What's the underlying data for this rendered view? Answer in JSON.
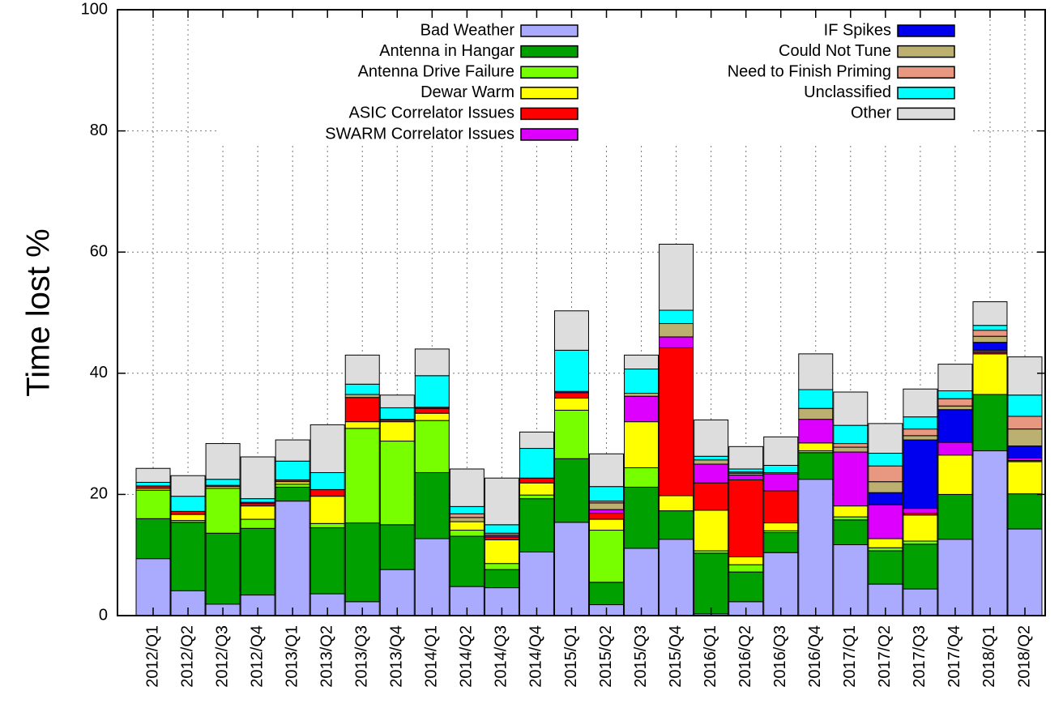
{
  "chart_data": {
    "type": "stacked_bar",
    "y_label": "Time lost %",
    "categories": [
      "2012/Q1",
      "2012/Q2",
      "2012/Q3",
      "2012/Q4",
      "2013/Q1",
      "2013/Q2",
      "2013/Q3",
      "2013/Q4",
      "2014/Q1",
      "2014/Q2",
      "2014/Q3",
      "2014/Q4",
      "2015/Q1",
      "2015/Q2",
      "2015/Q3",
      "2015/Q4",
      "2016/Q1",
      "2016/Q2",
      "2016/Q3",
      "2016/Q4",
      "2017/Q1",
      "2017/Q2",
      "2017/Q3",
      "2017/Q4",
      "2018/Q1",
      "2018/Q2"
    ],
    "ylim": [
      0,
      100
    ],
    "yticks": [
      0,
      20,
      40,
      60,
      80,
      100
    ],
    "grid": true,
    "legend": "top",
    "series": [
      {
        "name": "Bad Weather",
        "color": "#aaaaff",
        "values": [
          9.4,
          4.1,
          1.9,
          3.4,
          18.9,
          3.6,
          2.3,
          7.6,
          12.7,
          4.8,
          4.6,
          10.5,
          15.4,
          1.8,
          11.1,
          12.6,
          0.3,
          2.3,
          10.4,
          22.5,
          11.7,
          5.2,
          4.4,
          12.6,
          27.2,
          14.3
        ]
      },
      {
        "name": "Antenna in Hangar",
        "color": "#00a000",
        "values": [
          6.6,
          11.3,
          11.7,
          11.0,
          2.3,
          10.9,
          13.0,
          7.4,
          10.9,
          8.3,
          3.0,
          8.8,
          10.5,
          3.7,
          10.1,
          4.7,
          10.0,
          4.9,
          3.3,
          4.4,
          4.1,
          5.5,
          7.4,
          7.4,
          9.3,
          5.8
        ]
      },
      {
        "name": "Antenna Drive Failure",
        "color": "#77ff00",
        "values": [
          4.7,
          0.3,
          7.4,
          1.5,
          0.5,
          0.7,
          15.6,
          13.8,
          8.6,
          1.0,
          1.0,
          0.6,
          8.0,
          8.6,
          3.2,
          0,
          0.4,
          1.2,
          0.3,
          0.3,
          0.5,
          0.5,
          0.5,
          0,
          0,
          0
        ]
      },
      {
        "name": "Dewar Warm",
        "color": "#ffff00",
        "values": [
          0.3,
          1.0,
          0.3,
          2.2,
          0.4,
          4.5,
          1.1,
          3.2,
          1.2,
          1.4,
          3.9,
          2.0,
          2.0,
          1.8,
          7.6,
          2.5,
          6.7,
          1.3,
          1.3,
          1.3,
          1.8,
          1.5,
          4.3,
          6.5,
          6.7,
          5.3
        ]
      },
      {
        "name": "ASIC Correlator Issues",
        "color": "#ff0000",
        "values": [
          0.4,
          0.5,
          0.2,
          0.4,
          0.3,
          1.1,
          4.0,
          0.3,
          0.8,
          0,
          0.5,
          0.8,
          0.9,
          1.0,
          0,
          24.4,
          4.5,
          12.7,
          5.3,
          0,
          0,
          0,
          0.3,
          0,
          0.3,
          0.2
        ]
      },
      {
        "name": "SWARM Correlator Issues",
        "color": "#dd00ff",
        "values": [
          0,
          0,
          0,
          0.2,
          0,
          0,
          0,
          0.1,
          0.2,
          0,
          0.3,
          0,
          0.2,
          0.6,
          4.2,
          1.8,
          3.1,
          0.8,
          2.8,
          3.9,
          8.9,
          5.6,
          0.8,
          2.1,
          0.3,
          0.4
        ]
      },
      {
        "name": "IF Spikes",
        "color": "#0000ee",
        "values": [
          0,
          0,
          0,
          0,
          0,
          0,
          0,
          0,
          0,
          0,
          0,
          0,
          0,
          0,
          0,
          0,
          0,
          0,
          0,
          0,
          0,
          2.0,
          11.3,
          5.4,
          1.3,
          2.0
        ]
      },
      {
        "name": "Could Not Tune",
        "color": "#bbb070",
        "values": [
          0,
          0,
          0,
          0,
          0,
          0,
          0.5,
          0,
          0,
          0.7,
          0.3,
          0,
          0,
          1.1,
          0.5,
          2.2,
          0.7,
          0.3,
          0.2,
          1.8,
          0.8,
          1.8,
          0.7,
          0.6,
          1.0,
          2.8
        ]
      },
      {
        "name": "Need to Finish Priming",
        "color": "#e89880",
        "values": [
          0,
          0,
          0,
          0,
          0,
          0,
          0,
          0,
          0,
          0.6,
          0,
          0,
          0,
          0.3,
          0,
          0,
          0,
          0.2,
          0,
          0,
          0.6,
          2.6,
          1.1,
          1.2,
          1.0,
          2.1
        ]
      },
      {
        "name": "Unclassified",
        "color": "#00ffff",
        "values": [
          0.6,
          2.5,
          1.0,
          0.6,
          3.1,
          2.8,
          1.7,
          1.9,
          5.2,
          1.2,
          1.4,
          4.9,
          6.8,
          2.4,
          4.0,
          2.2,
          0.6,
          0.5,
          1.2,
          3.1,
          3.0,
          2.1,
          2.0,
          1.3,
          0.8,
          3.5
        ]
      },
      {
        "name": "Other",
        "color": "#dddddd",
        "values": [
          2.3,
          3.4,
          5.9,
          6.9,
          3.5,
          7.9,
          4.8,
          2.1,
          4.4,
          6.2,
          7.7,
          2.7,
          6.5,
          5.4,
          2.3,
          10.9,
          6.0,
          3.7,
          4.7,
          5.9,
          5.5,
          4.9,
          4.6,
          4.4,
          3.9,
          6.3
        ]
      }
    ]
  }
}
